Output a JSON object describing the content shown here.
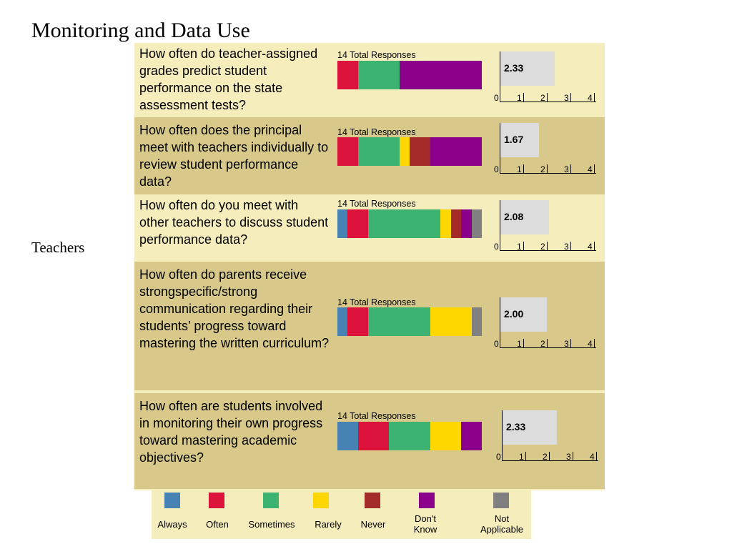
{
  "slide": {
    "title": "Monitoring and Data Use",
    "side_label": "Teachers"
  },
  "colors": {
    "Always": "#4682b4",
    "Often": "#dc143c",
    "Sometimes": "#3cb371",
    "Rarely": "#ffd700",
    "Never": "#a52a2a",
    "Dont_Know": "#8b008b",
    "Not_Applicable": "#808080"
  },
  "chart_data": {
    "type": "bar",
    "stacked": true,
    "categories_order": [
      "Always",
      "Often",
      "Sometimes",
      "Rarely",
      "Never",
      "Don't Know",
      "Not Applicable"
    ],
    "axis": {
      "xlim": [
        0,
        4
      ],
      "ticks": [
        "0",
        "1",
        "2",
        "3",
        "4"
      ]
    },
    "questions": [
      {
        "text": "How often do teacher-assigned grades predict student performance on the state assessment tests?",
        "responses_label": "14 Total Responses",
        "mean": 2.33,
        "mean_label": "2.33",
        "counts": [
          0,
          2,
          4,
          0,
          0,
          8,
          0
        ]
      },
      {
        "text": "How often does the principal meet with teachers individually to review student performance data?",
        "responses_label": "14 Total Responses",
        "mean": 1.67,
        "mean_label": "1.67",
        "counts": [
          0,
          2,
          4,
          1,
          2,
          5,
          0
        ]
      },
      {
        "text": "How often do you meet with other teachers to discuss student performance data?",
        "responses_label": "14 Total Responses",
        "mean": 2.08,
        "mean_label": "2.08",
        "counts": [
          1,
          2,
          7,
          1,
          1,
          1,
          1
        ]
      },
      {
        "text": "How often do parents receive strongspecific/strong communication regarding their students’ progress toward mastering the written curriculum?",
        "responses_label": "14 Total Responses",
        "mean": 2.0,
        "mean_label": "2.00",
        "counts": [
          1,
          2,
          6,
          4,
          0,
          0,
          1
        ]
      },
      {
        "text": "How often are students involved in monitoring their own progress toward mastering academic objectives?",
        "responses_label": "14 Total Responses",
        "mean": 2.33,
        "mean_label": "2.33",
        "counts": [
          2,
          3,
          4,
          3,
          0,
          2,
          0
        ]
      }
    ]
  },
  "legend": [
    {
      "key": "Always",
      "label": "Always"
    },
    {
      "key": "Often",
      "label": "Often"
    },
    {
      "key": "Sometimes",
      "label": "Sometimes"
    },
    {
      "key": "Rarely",
      "label": "Rarely"
    },
    {
      "key": "Never",
      "label": "Never"
    },
    {
      "key": "Dont_Know",
      "label": "Don't Know"
    },
    {
      "key": "Not_Applicable",
      "label": "Not Applicable"
    }
  ]
}
